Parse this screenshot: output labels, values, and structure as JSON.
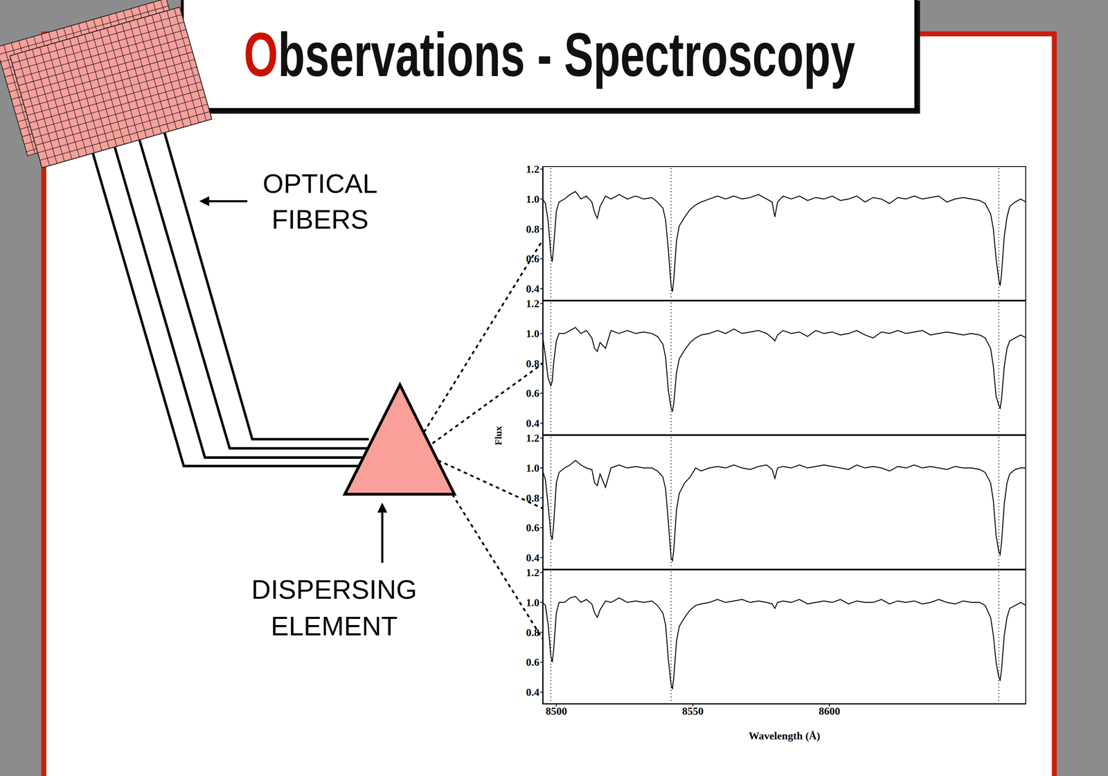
{
  "title": {
    "highlight": "O",
    "rest": "bservations - Spectroscopy",
    "color": "#cc1100"
  },
  "diagram": {
    "fibers_label": [
      "OPTICAL",
      "FIBERS"
    ],
    "dispersing_label": [
      "DISPERSING",
      "ELEMENT"
    ]
  },
  "figure": {
    "ylabel": "Flux"
  },
  "chart_data": [
    {
      "type": "line",
      "color": "#000000",
      "tick_labels": "y",
      "xlim": [
        8495,
        8672
      ],
      "ylim": [
        0.32,
        1.22
      ],
      "xticks": [
        8500,
        8550,
        8600
      ],
      "yticks": [
        0.4,
        0.6,
        0.8,
        {
          "value": 1,
          "label": "1.0"
        },
        1.2
      ],
      "vlines": [
        8498,
        8542,
        8662
      ],
      "x": [
        8495,
        8496,
        8497,
        8498,
        8498.5,
        8499,
        8500,
        8501,
        8503,
        8505,
        8507,
        8509,
        8511,
        8513,
        8514,
        8515,
        8516,
        8518,
        8520,
        8523,
        8526,
        8529,
        8532,
        8535,
        8537,
        8539,
        8540,
        8541,
        8542,
        8542.5,
        8543,
        8544,
        8545,
        8547,
        8549,
        8551,
        8553,
        8556,
        8559,
        8562,
        8565,
        8568,
        8571,
        8574,
        8577,
        8579,
        8580,
        8581,
        8583,
        8586,
        8589,
        8592,
        8595,
        8598,
        8601,
        8604,
        8607,
        8610,
        8613,
        8616,
        8619,
        8622,
        8625,
        8628,
        8631,
        8634,
        8637,
        8640,
        8643,
        8646,
        8649,
        8652,
        8655,
        8657,
        8659,
        8660,
        8661,
        8662,
        8662.5,
        8663,
        8664,
        8665,
        8666,
        8668,
        8670,
        8672
      ],
      "values": [
        1.0,
        0.97,
        0.85,
        0.63,
        0.58,
        0.68,
        0.92,
        0.98,
        1.0,
        1.03,
        1.05,
        1.0,
        1.02,
        0.98,
        0.91,
        0.87,
        0.95,
        1.02,
        1.0,
        1.03,
        1.0,
        1.02,
        1.0,
        1.01,
        0.98,
        0.94,
        0.86,
        0.66,
        0.42,
        0.38,
        0.46,
        0.72,
        0.82,
        0.88,
        0.93,
        0.96,
        0.98,
        1.0,
        1.02,
        1.0,
        1.02,
        1.0,
        1.01,
        1.03,
        1.0,
        0.98,
        0.88,
        0.98,
        1.02,
        1.0,
        1.02,
        0.99,
        1.01,
        1.0,
        1.02,
        0.99,
        1.0,
        1.02,
        0.98,
        1.01,
        1.0,
        0.97,
        1.01,
        1.0,
        1.02,
        1.0,
        1.01,
        1.02,
        0.98,
        1.0,
        1.01,
        1.0,
        0.99,
        0.97,
        0.9,
        0.8,
        0.6,
        0.46,
        0.42,
        0.5,
        0.75,
        0.88,
        0.95,
        0.98,
        1.0,
        0.98
      ]
    },
    {
      "type": "line",
      "color": "#000000",
      "tick_labels": "y",
      "xlim": [
        8495,
        8672
      ],
      "ylim": [
        0.32,
        1.22
      ],
      "xticks": [
        8500,
        8550,
        8600
      ],
      "yticks": [
        0.4,
        0.6,
        0.8,
        {
          "value": 1,
          "label": "1.0"
        },
        1.2
      ],
      "vlines": [
        8498,
        8542,
        8662
      ],
      "x": [
        8495,
        8496,
        8497,
        8498,
        8498.5,
        8499,
        8500,
        8501,
        8503,
        8505,
        8507,
        8509,
        8511,
        8513,
        8514,
        8515,
        8516,
        8518,
        8520,
        8523,
        8526,
        8529,
        8532,
        8535,
        8537,
        8539,
        8540,
        8541,
        8542,
        8542.5,
        8543,
        8544,
        8545,
        8547,
        8549,
        8551,
        8553,
        8556,
        8559,
        8562,
        8565,
        8568,
        8571,
        8574,
        8577,
        8579,
        8580,
        8581,
        8583,
        8586,
        8589,
        8592,
        8595,
        8598,
        8601,
        8604,
        8607,
        8610,
        8613,
        8616,
        8619,
        8622,
        8625,
        8628,
        8631,
        8634,
        8637,
        8640,
        8643,
        8646,
        8649,
        8652,
        8655,
        8657,
        8659,
        8660,
        8661,
        8662,
        8662.5,
        8663,
        8664,
        8665,
        8666,
        8668,
        8670,
        8672
      ],
      "values": [
        0.98,
        0.85,
        0.7,
        0.65,
        0.68,
        0.8,
        0.95,
        1.0,
        1.0,
        1.02,
        1.04,
        1.0,
        1.02,
        0.97,
        0.9,
        0.88,
        0.94,
        0.9,
        1.02,
        1.0,
        1.02,
        1.0,
        1.01,
        1.0,
        0.98,
        0.93,
        0.84,
        0.62,
        0.5,
        0.48,
        0.53,
        0.74,
        0.83,
        0.89,
        0.94,
        0.97,
        0.99,
        1.0,
        1.02,
        1.0,
        1.03,
        1.0,
        1.01,
        1.02,
        1.0,
        0.97,
        0.95,
        0.99,
        1.02,
        1.0,
        1.01,
        0.98,
        1.02,
        1.0,
        1.01,
        0.99,
        1.0,
        1.02,
        0.99,
        0.97,
        1.01,
        1.0,
        1.02,
        1.0,
        1.01,
        1.02,
        0.99,
        1.0,
        1.01,
        1.0,
        0.99,
        1.0,
        0.99,
        0.97,
        0.9,
        0.78,
        0.58,
        0.52,
        0.5,
        0.56,
        0.78,
        0.9,
        0.95,
        0.97,
        0.99,
        0.97
      ]
    },
    {
      "type": "line",
      "color": "#000000",
      "tick_labels": "y",
      "xlim": [
        8495,
        8672
      ],
      "ylim": [
        0.32,
        1.22
      ],
      "xticks": [
        8500,
        8550,
        8600
      ],
      "yticks": [
        0.4,
        0.6,
        0.8,
        {
          "value": 1,
          "label": "1.0"
        },
        1.2
      ],
      "vlines": [
        8498,
        8542,
        8662
      ],
      "x": [
        8495,
        8496,
        8497,
        8498,
        8498.5,
        8499,
        8500,
        8501,
        8503,
        8505,
        8507,
        8509,
        8511,
        8513,
        8514,
        8515,
        8516,
        8518,
        8520,
        8523,
        8526,
        8529,
        8532,
        8535,
        8537,
        8539,
        8540,
        8541,
        8542,
        8542.5,
        8543,
        8544,
        8545,
        8547,
        8549,
        8551,
        8553,
        8556,
        8559,
        8562,
        8565,
        8568,
        8571,
        8574,
        8577,
        8579,
        8580,
        8581,
        8583,
        8586,
        8589,
        8592,
        8595,
        8598,
        8601,
        8604,
        8607,
        8610,
        8613,
        8616,
        8619,
        8622,
        8625,
        8628,
        8631,
        8634,
        8637,
        8640,
        8643,
        8646,
        8649,
        8652,
        8655,
        8657,
        8659,
        8660,
        8661,
        8662,
        8662.5,
        8663,
        8664,
        8665,
        8666,
        8668,
        8670,
        8672
      ],
      "values": [
        0.98,
        0.92,
        0.75,
        0.55,
        0.52,
        0.62,
        0.9,
        0.97,
        1.0,
        1.02,
        1.05,
        1.02,
        1.0,
        0.99,
        0.9,
        0.88,
        0.96,
        0.87,
        1.0,
        1.02,
        1.0,
        1.01,
        1.0,
        1.0,
        0.98,
        0.94,
        0.86,
        0.64,
        0.4,
        0.38,
        0.45,
        0.72,
        0.83,
        0.9,
        0.94,
        1.0,
        0.98,
        1.0,
        1.01,
        1.0,
        1.02,
        1.0,
        0.99,
        1.01,
        1.02,
        0.99,
        0.93,
        1.0,
        1.01,
        1.0,
        1.02,
        1.0,
        1.01,
        1.02,
        1.01,
        1.0,
        0.99,
        1.02,
        1.0,
        1.01,
        1.0,
        0.98,
        1.01,
        1.0,
        1.02,
        1.0,
        1.01,
        1.0,
        0.99,
        1.01,
        1.0,
        1.0,
        0.99,
        0.97,
        0.9,
        0.78,
        0.55,
        0.44,
        0.42,
        0.5,
        0.76,
        0.9,
        0.96,
        0.99,
        1.0,
        1.0
      ]
    },
    {
      "type": "line",
      "color": "#000000",
      "xlabel": "Wavelength (Å)",
      "xlim": [
        8495,
        8672
      ],
      "ylim": [
        0.32,
        1.22
      ],
      "xticks": [
        8500,
        8550,
        8600
      ],
      "yticks": [
        0.4,
        0.6,
        0.8,
        {
          "value": 1,
          "label": "1.0"
        },
        1.2
      ],
      "vlines": [
        8498,
        8542,
        8662
      ],
      "x": [
        8495,
        8496,
        8497,
        8498,
        8498.5,
        8499,
        8500,
        8501,
        8503,
        8505,
        8507,
        8509,
        8511,
        8513,
        8514,
        8515,
        8516,
        8518,
        8520,
        8523,
        8526,
        8529,
        8532,
        8535,
        8537,
        8539,
        8540,
        8541,
        8542,
        8542.5,
        8543,
        8544,
        8545,
        8547,
        8549,
        8551,
        8553,
        8556,
        8559,
        8562,
        8565,
        8568,
        8571,
        8574,
        8577,
        8579,
        8580,
        8581,
        8583,
        8586,
        8589,
        8592,
        8595,
        8598,
        8601,
        8604,
        8607,
        8610,
        8613,
        8616,
        8619,
        8622,
        8625,
        8628,
        8631,
        8634,
        8637,
        8640,
        8643,
        8646,
        8649,
        8652,
        8655,
        8657,
        8659,
        8660,
        8661,
        8662,
        8662.5,
        8663,
        8664,
        8665,
        8666,
        8668,
        8670,
        8672
      ],
      "values": [
        1.0,
        0.98,
        0.85,
        0.64,
        0.6,
        0.68,
        0.93,
        1.0,
        1.0,
        1.03,
        1.04,
        1.0,
        1.02,
        0.99,
        0.93,
        0.9,
        0.95,
        1.01,
        1.0,
        1.03,
        1.0,
        1.01,
        1.0,
        1.01,
        0.98,
        0.93,
        0.85,
        0.62,
        0.45,
        0.42,
        0.5,
        0.74,
        0.84,
        0.9,
        0.95,
        0.98,
        0.99,
        1.0,
        1.02,
        1.0,
        1.01,
        1.02,
        1.0,
        1.01,
        1.0,
        0.99,
        0.96,
        1.0,
        1.01,
        1.0,
        1.02,
        0.99,
        1.0,
        1.01,
        1.0,
        1.02,
        0.99,
        1.01,
        1.0,
        1.0,
        1.02,
        0.99,
        1.01,
        1.0,
        1.01,
        0.99,
        1.0,
        1.02,
        1.0,
        0.99,
        1.01,
        1.0,
        1.0,
        0.98,
        0.9,
        0.78,
        0.6,
        0.5,
        0.48,
        0.55,
        0.78,
        0.9,
        0.96,
        0.98,
        1.0,
        0.98
      ]
    }
  ]
}
